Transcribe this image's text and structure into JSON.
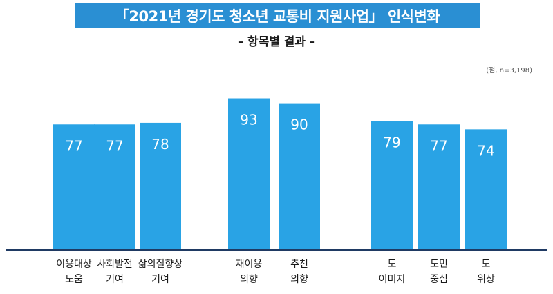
{
  "header": {
    "title": "「2021년 경기도 청소년 교통비 지원사업」 인식변화",
    "subtitle_dash_left": "-",
    "subtitle_main": "항목별 결과",
    "subtitle_dash_right": "-",
    "unit_note": "(점, n=3,198)"
  },
  "colors": {
    "bar": "#29a3e5",
    "baseline": "#1f3a63",
    "banner": "#2a8fd3"
  },
  "chart_data": {
    "type": "bar",
    "categories": [
      [
        "이용대상",
        "도움"
      ],
      [
        "사회발전",
        "기여"
      ],
      [
        "삶의질향상",
        "기여"
      ],
      [
        "재이용",
        "의향"
      ],
      [
        "추천",
        "의향"
      ],
      [
        "도",
        "이미지"
      ],
      [
        "도민",
        "중심"
      ],
      [
        "도",
        "위상"
      ]
    ],
    "values": [
      77,
      77,
      78,
      93,
      90,
      79,
      77,
      74
    ],
    "groups": [
      [
        0,
        1,
        2
      ],
      [
        3,
        4
      ],
      [
        5,
        6,
        7
      ]
    ],
    "ylim": [
      0,
      100
    ],
    "grid": false,
    "legend": "none"
  }
}
